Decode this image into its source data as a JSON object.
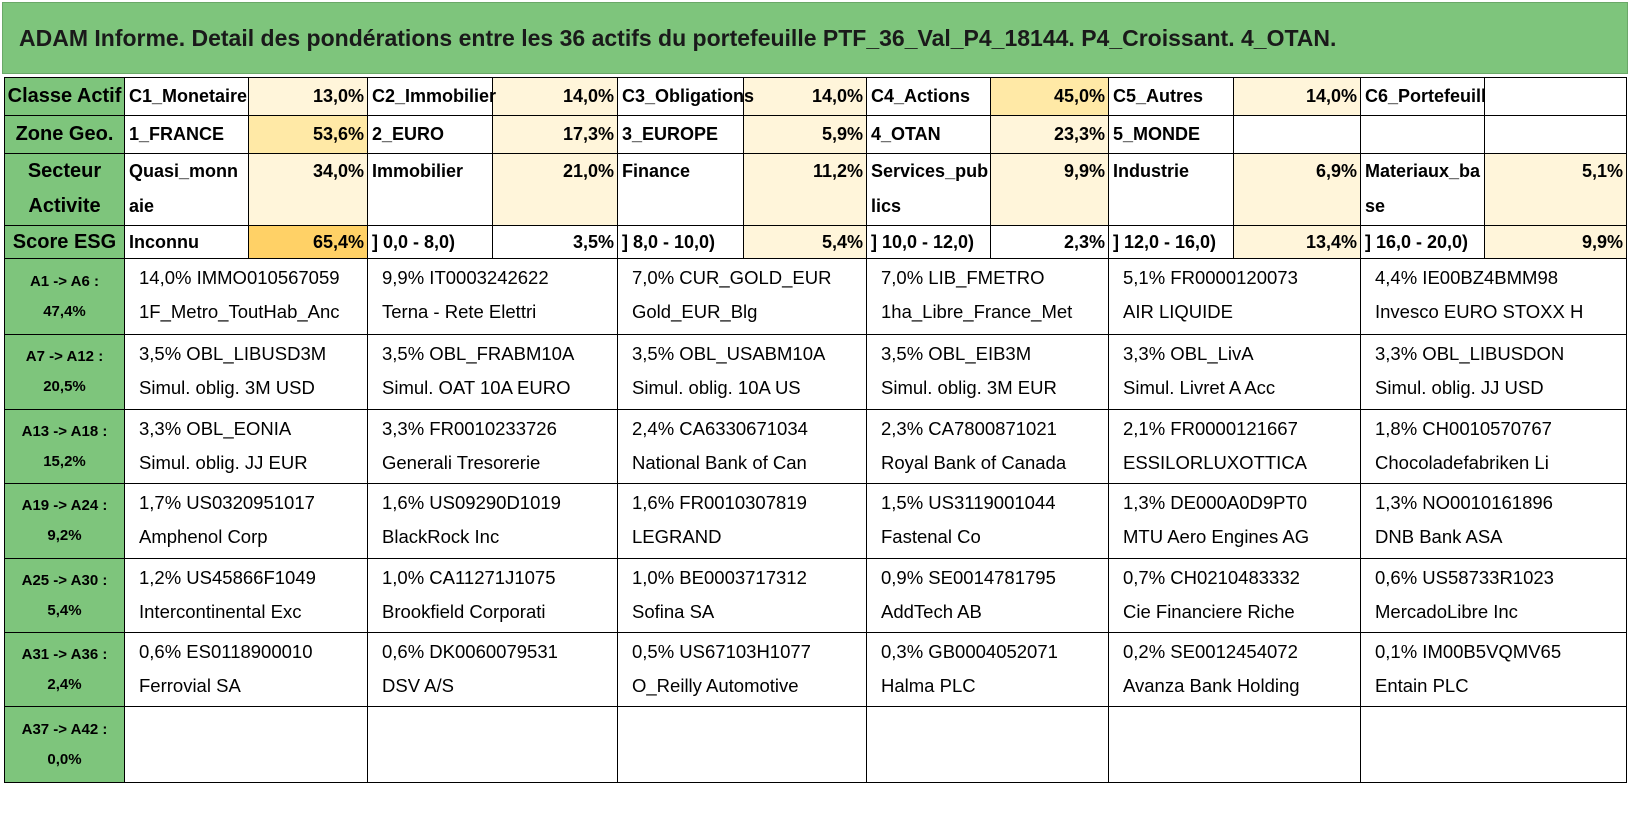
{
  "title": "ADAM Informe. Detail des pondérations entre les 36 actifs du portefeuille PTF_36_Val_P4_18144. P4_Croissant. 4_OTAN.",
  "colors": {
    "header_green": "#7ec57c",
    "shade_light": "#fff5da",
    "shade_medium": "#ffe9a6",
    "shade_strong": "#ffd166",
    "grid_line": "#000000"
  },
  "summary": {
    "classe": {
      "label": "Classe Actif",
      "cells": [
        {
          "name": "C1_Monetaire",
          "pct": "13,0%"
        },
        {
          "name": "C2_Immobilier",
          "pct": "14,0%"
        },
        {
          "name": "C3_Obligations",
          "pct": "14,0%"
        },
        {
          "name": "C4_Actions",
          "pct": "45,0%"
        },
        {
          "name": "C5_Autres",
          "pct": "14,0%"
        },
        {
          "name": "C6_Portefeuill",
          "pct": ""
        }
      ]
    },
    "zone": {
      "label": "Zone Geo.",
      "cells": [
        {
          "name": "1_FRANCE",
          "pct": "53,6%"
        },
        {
          "name": "2_EURO",
          "pct": "17,3%"
        },
        {
          "name": "3_EUROPE",
          "pct": "5,9%"
        },
        {
          "name": "4_OTAN",
          "pct": "23,3%"
        },
        {
          "name": "5_MONDE",
          "pct": ""
        },
        {
          "name": "",
          "pct": ""
        }
      ]
    },
    "secteur": {
      "label": "Secteur Activite",
      "cells": [
        {
          "name": "Quasi_monnaie",
          "pct": "34,0%"
        },
        {
          "name": "Immobilier",
          "pct": "21,0%"
        },
        {
          "name": "Finance",
          "pct": "11,2%"
        },
        {
          "name": "Services_publics",
          "pct": "9,9%"
        },
        {
          "name": "Industrie",
          "pct": "6,9%"
        },
        {
          "name": "Materiaux_base",
          "pct": "5,1%"
        }
      ]
    },
    "esg": {
      "label": "Score ESG",
      "cells": [
        {
          "name": "Inconnu",
          "pct": "65,4%"
        },
        {
          "name": "] 0,0 - 8,0)",
          "pct": "3,5%"
        },
        {
          "name": "] 8,0 - 10,0)",
          "pct": "5,4%"
        },
        {
          "name": "] 10,0 - 12,0)",
          "pct": "2,3%"
        },
        {
          "name": "] 12,0 - 16,0)",
          "pct": "13,4%"
        },
        {
          "name": "] 16,0 - 20,0)",
          "pct": "9,9%"
        }
      ]
    }
  },
  "asset_rows": [
    {
      "range": "A1 -> A6 :",
      "total": "47,4%",
      "assets": [
        {
          "line1": "14,0% IMMO010567059",
          "line2": "1F_Metro_ToutHab_Anc"
        },
        {
          "line1": "9,9% IT0003242622",
          "line2": "Terna - Rete Elettri"
        },
        {
          "line1": "7,0% CUR_GOLD_EUR",
          "line2": "Gold_EUR_Blg"
        },
        {
          "line1": "7,0% LIB_FMETRO",
          "line2": "1ha_Libre_France_Met"
        },
        {
          "line1": "5,1% FR0000120073",
          "line2": "AIR LIQUIDE"
        },
        {
          "line1": "4,4% IE00BZ4BMM98",
          "line2": "Invesco EURO STOXX H"
        }
      ]
    },
    {
      "range": "A7 -> A12 :",
      "total": "20,5%",
      "assets": [
        {
          "line1": "3,5% OBL_LIBUSD3M",
          "line2": "Simul. oblig. 3M USD"
        },
        {
          "line1": "3,5% OBL_FRABM10A",
          "line2": "Simul. OAT 10A EURO"
        },
        {
          "line1": "3,5% OBL_USABM10A",
          "line2": "Simul. oblig. 10A US"
        },
        {
          "line1": "3,5% OBL_EIB3M",
          "line2": "Simul. oblig. 3M EUR"
        },
        {
          "line1": "3,3% OBL_LivA",
          "line2": "Simul. Livret A Acc"
        },
        {
          "line1": "3,3% OBL_LIBUSDON",
          "line2": "Simul. oblig. JJ USD"
        }
      ]
    },
    {
      "range": "A13 -> A18 :",
      "total": "15,2%",
      "assets": [
        {
          "line1": "3,3% OBL_EONIA",
          "line2": "Simul. oblig. JJ EUR"
        },
        {
          "line1": "3,3% FR0010233726",
          "line2": "Generali Tresorerie"
        },
        {
          "line1": "2,4% CA6330671034",
          "line2": "National Bank of Can"
        },
        {
          "line1": "2,3% CA7800871021",
          "line2": "Royal Bank of Canada"
        },
        {
          "line1": "2,1% FR0000121667",
          "line2": "ESSILORLUXOTTICA"
        },
        {
          "line1": "1,8% CH0010570767",
          "line2": "Chocoladefabriken Li"
        }
      ]
    },
    {
      "range": "A19 -> A24 :",
      "total": "9,2%",
      "assets": [
        {
          "line1": "1,7% US0320951017",
          "line2": "Amphenol Corp"
        },
        {
          "line1": "1,6% US09290D1019",
          "line2": "BlackRock Inc"
        },
        {
          "line1": "1,6% FR0010307819",
          "line2": "LEGRAND"
        },
        {
          "line1": "1,5% US3119001044",
          "line2": "Fastenal Co"
        },
        {
          "line1": "1,3% DE000A0D9PT0",
          "line2": "MTU Aero Engines AG"
        },
        {
          "line1": "1,3% NO0010161896",
          "line2": "DNB Bank ASA"
        }
      ]
    },
    {
      "range": "A25 -> A30 :",
      "total": "5,4%",
      "assets": [
        {
          "line1": "1,2% US45866F1049",
          "line2": "Intercontinental Exc"
        },
        {
          "line1": "1,0% CA11271J1075",
          "line2": "Brookfield Corporati"
        },
        {
          "line1": "1,0% BE0003717312",
          "line2": "Sofina SA"
        },
        {
          "line1": "0,9% SE0014781795",
          "line2": "AddTech AB"
        },
        {
          "line1": "0,7% CH0210483332",
          "line2": "Cie Financiere Riche"
        },
        {
          "line1": "0,6% US58733R1023",
          "line2": "MercadoLibre Inc"
        }
      ]
    },
    {
      "range": "A31 -> A36 :",
      "total": "2,4%",
      "assets": [
        {
          "line1": "0,6% ES0118900010",
          "line2": "Ferrovial SA"
        },
        {
          "line1": "0,6% DK0060079531",
          "line2": "DSV A/S"
        },
        {
          "line1": "0,5% US67103H1077",
          "line2": "O_Reilly Automotive"
        },
        {
          "line1": "0,3% GB0004052071",
          "line2": "Halma PLC"
        },
        {
          "line1": "0,2% SE0012454072",
          "line2": "Avanza Bank Holding"
        },
        {
          "line1": "0,1% IM00B5VQMV65",
          "line2": "Entain PLC"
        }
      ]
    },
    {
      "range": "A37 -> A42 :",
      "total": "0,0%",
      "assets": [
        {
          "line1": "",
          "line2": ""
        },
        {
          "line1": "",
          "line2": ""
        },
        {
          "line1": "",
          "line2": ""
        },
        {
          "line1": "",
          "line2": ""
        },
        {
          "line1": "",
          "line2": ""
        },
        {
          "line1": "",
          "line2": ""
        }
      ]
    }
  ]
}
